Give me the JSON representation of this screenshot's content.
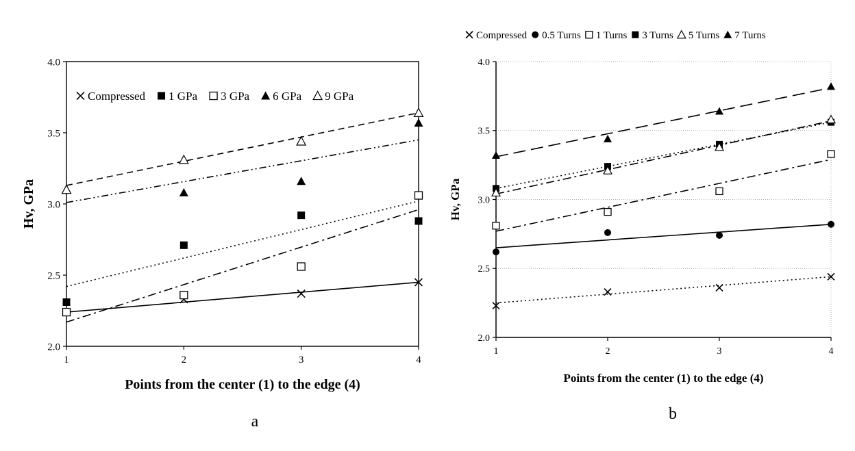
{
  "chart_data": [
    {
      "type": "scatter",
      "panel_label": "a",
      "xlabel": "Points from the center (1) to the edge (4)",
      "ylabel": "Hv, GPa",
      "xlim": [
        1,
        4
      ],
      "ylim": [
        2.0,
        4.0
      ],
      "x_ticks": [
        "1",
        "2",
        "3",
        "4"
      ],
      "y_ticks": [
        "2.0",
        "2.5",
        "3.0",
        "3.5",
        "4.0"
      ],
      "grid": false,
      "legend_position": "top, inside plot",
      "x": [
        1,
        2,
        3,
        4
      ],
      "series": [
        {
          "name": "Compressed",
          "marker": "x-mark",
          "values": [
            2.24,
            2.33,
            2.37,
            2.45
          ],
          "trendline": "solid",
          "trend": [
            2.24,
            2.45
          ]
        },
        {
          "name": "1 GPa",
          "marker": "filled-square",
          "values": [
            2.31,
            2.71,
            2.92,
            2.88
          ],
          "trendline": "dotted",
          "trend": [
            2.42,
            3.02
          ]
        },
        {
          "name": "3 GPa",
          "marker": "open-square",
          "values": [
            2.24,
            2.36,
            2.56,
            3.06
          ],
          "trendline": "dash-dot",
          "trend": [
            2.17,
            2.96
          ]
        },
        {
          "name": "6 GPa",
          "marker": "filled-triangle",
          "values": [
            3.1,
            3.08,
            3.16,
            3.57
          ],
          "trendline": "dash-dot-dot",
          "trend": [
            3.01,
            3.45
          ]
        },
        {
          "name": "9 GPa",
          "marker": "open-triangle",
          "values": [
            3.1,
            3.31,
            3.44,
            3.64
          ],
          "trendline": "dashed",
          "trend": [
            3.13,
            3.64
          ]
        }
      ]
    },
    {
      "type": "scatter",
      "panel_label": "b",
      "xlabel": "Points from the center (1) to the edge (4)",
      "ylabel": "Hv, GPa",
      "xlim": [
        1,
        4
      ],
      "ylim": [
        2.0,
        4.0
      ],
      "x_ticks": [
        "1",
        "2",
        "3",
        "4"
      ],
      "y_ticks": [
        "2.0",
        "2.5",
        "3.0",
        "3.5",
        "4.0"
      ],
      "grid": true,
      "legend_position": "top, above plot",
      "x": [
        1,
        2,
        3,
        4
      ],
      "series": [
        {
          "name": "Compressed",
          "marker": "x-mark",
          "values": [
            2.23,
            2.33,
            2.36,
            2.44
          ],
          "trendline": "dotted",
          "trend": [
            2.25,
            2.44
          ]
        },
        {
          "name": "0.5 Turns",
          "marker": "filled-circle",
          "values": [
            2.62,
            2.76,
            2.74,
            2.82
          ],
          "trendline": "solid",
          "trend": [
            2.65,
            2.82
          ]
        },
        {
          "name": "1 Turns",
          "marker": "open-square",
          "values": [
            2.81,
            2.91,
            3.06,
            3.33
          ],
          "trendline": "dash-dot",
          "trend": [
            2.77,
            3.29
          ]
        },
        {
          "name": "3 Turns",
          "marker": "filled-square",
          "values": [
            3.08,
            3.24,
            3.4,
            3.56
          ],
          "trendline": "dotted",
          "trend": [
            3.08,
            3.56
          ]
        },
        {
          "name": "5 Turns",
          "marker": "open-triangle",
          "values": [
            3.05,
            3.21,
            3.38,
            3.58
          ],
          "trendline": "dash-dot",
          "trend": [
            3.04,
            3.57
          ]
        },
        {
          "name": "7 Turns",
          "marker": "filled-triangle",
          "values": [
            3.32,
            3.44,
            3.64,
            3.82
          ],
          "trendline": "long-dash",
          "trend": [
            3.31,
            3.81
          ]
        }
      ]
    }
  ]
}
